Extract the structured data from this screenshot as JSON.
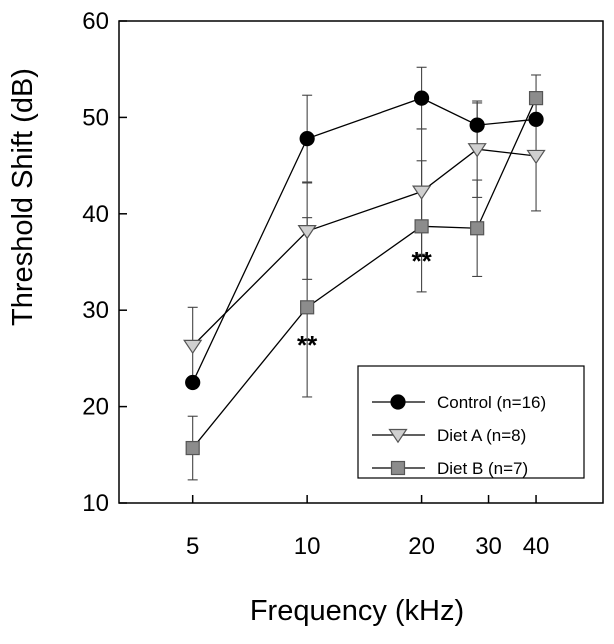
{
  "chart_data": {
    "type": "line",
    "xlabel": "Frequency (kHz)",
    "ylabel": "Threshold Shift (dB)",
    "x_scale": "log",
    "xlim": [
      3.2,
      60
    ],
    "ylim": [
      10,
      60
    ],
    "x_ticks": [
      5,
      10,
      20,
      30,
      40
    ],
    "x_tick_labels": [
      "5",
      "10",
      "20",
      "30",
      "40"
    ],
    "y_ticks": [
      10,
      20,
      30,
      40,
      50,
      60
    ],
    "y_tick_labels": [
      "10",
      "20",
      "30",
      "40",
      "50",
      "60"
    ],
    "grid": false,
    "legend_position": "bottom-right",
    "series": [
      {
        "name": "Control (n=16)",
        "marker": "circle",
        "color": "#000000",
        "x": [
          5,
          10,
          20,
          28,
          40
        ],
        "y": [
          22.5,
          47.8,
          52.0,
          49.2,
          49.8
        ],
        "err": [
          0,
          4.5,
          3.2,
          2.3,
          0
        ]
      },
      {
        "name": "Diet A (n=8)",
        "marker": "triangle-down",
        "color": "#d0d0d0",
        "x": [
          5,
          10,
          20,
          28,
          40
        ],
        "y": [
          26.3,
          38.2,
          42.3,
          46.7,
          46.0
        ],
        "err": [
          4.0,
          5.0,
          6.5,
          5.0,
          5.7
        ]
      },
      {
        "name": "Diet B (n=7)",
        "marker": "square",
        "color": "#8c8c8c",
        "x": [
          5,
          10,
          20,
          28,
          40
        ],
        "y": [
          15.7,
          30.3,
          38.7,
          38.5,
          52.0
        ],
        "err": [
          3.3,
          9.3,
          6.8,
          5.0,
          2.4
        ]
      }
    ],
    "annotations": [
      {
        "text": "**",
        "x": 10,
        "y": 26.5
      },
      {
        "text": "**",
        "x": 20,
        "y": 35.2
      }
    ]
  }
}
